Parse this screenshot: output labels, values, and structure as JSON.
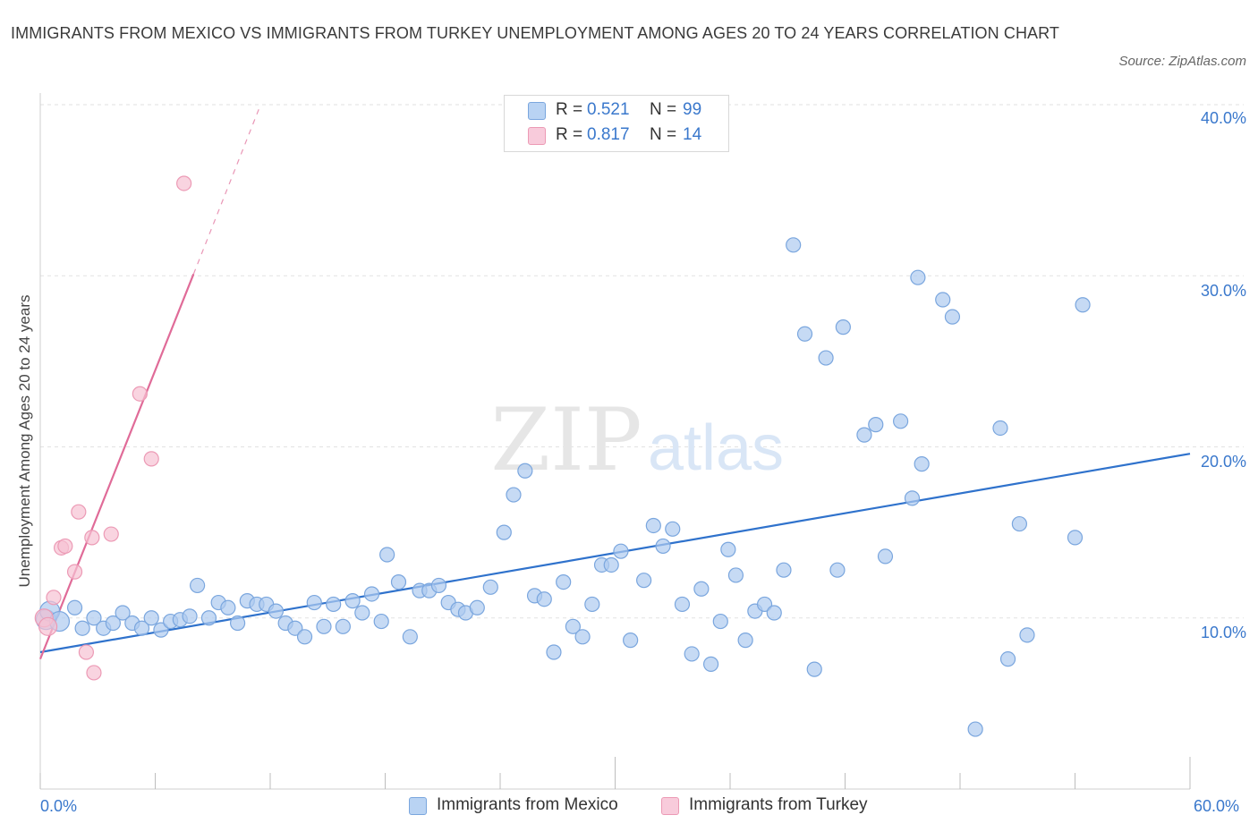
{
  "title": "IMMIGRANTS FROM MEXICO VS IMMIGRANTS FROM TURKEY UNEMPLOYMENT AMONG AGES 20 TO 24 YEARS CORRELATION CHART",
  "source": "Source: ZipAtlas.com",
  "watermark": {
    "zip": "ZIP",
    "atlas": "atlas"
  },
  "legend": {
    "mexico": {
      "r_label": "R =",
      "r_value": "0.521",
      "n_label": "N =",
      "n_value": "99"
    },
    "turkey": {
      "r_label": "R =",
      "r_value": "0.817",
      "n_label": "N =",
      "n_value": "14"
    }
  },
  "bottom_legend": {
    "mexico": "Immigrants from Mexico",
    "turkey": "Immigrants from Turkey"
  },
  "x_tick_labels": {
    "left": "0.0%",
    "right": "60.0%"
  },
  "y_tick_labels": [
    "40.0%",
    "30.0%",
    "20.0%",
    "10.0%"
  ],
  "colors": {
    "mexico_fill": "#aecbf0",
    "mexico_stroke": "#7aa6de",
    "mexico_line": "#2f72cc",
    "turkey_fill": "#f6c2d3",
    "turkey_stroke": "#ec9ab5",
    "turkey_line": "#e06b98",
    "tick_text": "#3a78cc"
  },
  "chart_data": {
    "type": "scatter",
    "title": "IMMIGRANTS FROM MEXICO VS IMMIGRANTS FROM TURKEY UNEMPLOYMENT AMONG AGES 20 TO 24 YEARS CORRELATION CHART",
    "xlabel": "",
    "ylabel": "Unemployment Among Ages 20 to 24 years",
    "xlim": [
      0,
      60
    ],
    "ylim": [
      0,
      40
    ],
    "y_gridlines": [
      10,
      20,
      30,
      40
    ],
    "legend_position": "top-center",
    "series": [
      {
        "name": "Immigrants from Mexico",
        "R": 0.521,
        "N": 99,
        "trendline": {
          "x": [
            0,
            60
          ],
          "y": [
            8.0,
            19.6
          ],
          "dashed_extension": false
        },
        "points": [
          [
            0.3,
            9.9
          ],
          [
            0.5,
            10.4
          ],
          [
            1.0,
            9.8
          ],
          [
            1.8,
            10.6
          ],
          [
            2.2,
            9.4
          ],
          [
            2.8,
            10.0
          ],
          [
            3.3,
            9.4
          ],
          [
            3.8,
            9.7
          ],
          [
            4.3,
            10.3
          ],
          [
            4.8,
            9.7
          ],
          [
            5.3,
            9.4
          ],
          [
            5.8,
            10.0
          ],
          [
            6.3,
            9.3
          ],
          [
            6.8,
            9.8
          ],
          [
            7.3,
            9.9
          ],
          [
            7.8,
            10.1
          ],
          [
            8.2,
            11.9
          ],
          [
            8.8,
            10.0
          ],
          [
            9.3,
            10.9
          ],
          [
            9.8,
            10.6
          ],
          [
            10.3,
            9.7
          ],
          [
            10.8,
            11.0
          ],
          [
            11.3,
            10.8
          ],
          [
            11.8,
            10.8
          ],
          [
            12.3,
            10.4
          ],
          [
            12.8,
            9.7
          ],
          [
            13.3,
            9.4
          ],
          [
            13.8,
            8.9
          ],
          [
            14.3,
            10.9
          ],
          [
            14.8,
            9.5
          ],
          [
            15.3,
            10.8
          ],
          [
            15.8,
            9.5
          ],
          [
            16.3,
            11.0
          ],
          [
            16.8,
            10.3
          ],
          [
            17.3,
            11.4
          ],
          [
            17.8,
            9.8
          ],
          [
            18.1,
            13.7
          ],
          [
            18.7,
            12.1
          ],
          [
            19.3,
            8.9
          ],
          [
            19.8,
            11.6
          ],
          [
            20.3,
            11.6
          ],
          [
            20.8,
            11.9
          ],
          [
            21.3,
            10.9
          ],
          [
            21.8,
            10.5
          ],
          [
            22.2,
            10.3
          ],
          [
            22.8,
            10.6
          ],
          [
            23.5,
            11.8
          ],
          [
            24.2,
            15.0
          ],
          [
            24.7,
            17.2
          ],
          [
            25.3,
            18.6
          ],
          [
            25.8,
            11.3
          ],
          [
            26.3,
            11.1
          ],
          [
            26.8,
            8.0
          ],
          [
            27.3,
            12.1
          ],
          [
            27.8,
            9.5
          ],
          [
            28.3,
            8.9
          ],
          [
            28.8,
            10.8
          ],
          [
            29.3,
            13.1
          ],
          [
            29.8,
            13.1
          ],
          [
            30.3,
            13.9
          ],
          [
            30.8,
            8.7
          ],
          [
            31.5,
            12.2
          ],
          [
            32.0,
            15.4
          ],
          [
            32.5,
            14.2
          ],
          [
            33.0,
            15.2
          ],
          [
            33.5,
            10.8
          ],
          [
            34.0,
            7.9
          ],
          [
            34.5,
            11.7
          ],
          [
            35.0,
            7.3
          ],
          [
            35.5,
            9.8
          ],
          [
            35.9,
            14.0
          ],
          [
            36.3,
            12.5
          ],
          [
            36.8,
            8.7
          ],
          [
            37.3,
            10.4
          ],
          [
            37.8,
            10.8
          ],
          [
            38.3,
            10.3
          ],
          [
            38.8,
            12.8
          ],
          [
            39.3,
            31.8
          ],
          [
            39.9,
            26.6
          ],
          [
            40.4,
            7.0
          ],
          [
            41.0,
            25.2
          ],
          [
            41.6,
            12.8
          ],
          [
            41.9,
            27.0
          ],
          [
            43.0,
            20.7
          ],
          [
            43.6,
            21.3
          ],
          [
            44.1,
            13.6
          ],
          [
            44.9,
            21.5
          ],
          [
            45.5,
            17.0
          ],
          [
            45.8,
            29.9
          ],
          [
            46.0,
            19.0
          ],
          [
            47.1,
            28.6
          ],
          [
            47.6,
            27.6
          ],
          [
            48.8,
            3.5
          ],
          [
            50.1,
            21.1
          ],
          [
            50.5,
            7.6
          ],
          [
            51.1,
            15.5
          ],
          [
            51.5,
            9.0
          ],
          [
            54.0,
            14.7
          ],
          [
            54.4,
            28.3
          ]
        ]
      },
      {
        "name": "Immigrants from Turkey",
        "R": 0.817,
        "N": 14,
        "trendline": {
          "x": [
            0,
            8.0
          ],
          "y": [
            7.6,
            30.1
          ],
          "dashed_extension_to": [
            11.5,
            40.0
          ]
        },
        "points": [
          [
            0.2,
            10.0
          ],
          [
            0.4,
            9.5
          ],
          [
            0.7,
            11.2
          ],
          [
            1.1,
            14.1
          ],
          [
            1.3,
            14.2
          ],
          [
            1.8,
            12.7
          ],
          [
            2.0,
            16.2
          ],
          [
            2.4,
            8.0
          ],
          [
            2.7,
            14.7
          ],
          [
            2.8,
            6.8
          ],
          [
            3.7,
            14.9
          ],
          [
            5.2,
            23.1
          ],
          [
            5.8,
            19.3
          ],
          [
            7.5,
            35.4
          ]
        ]
      }
    ]
  }
}
